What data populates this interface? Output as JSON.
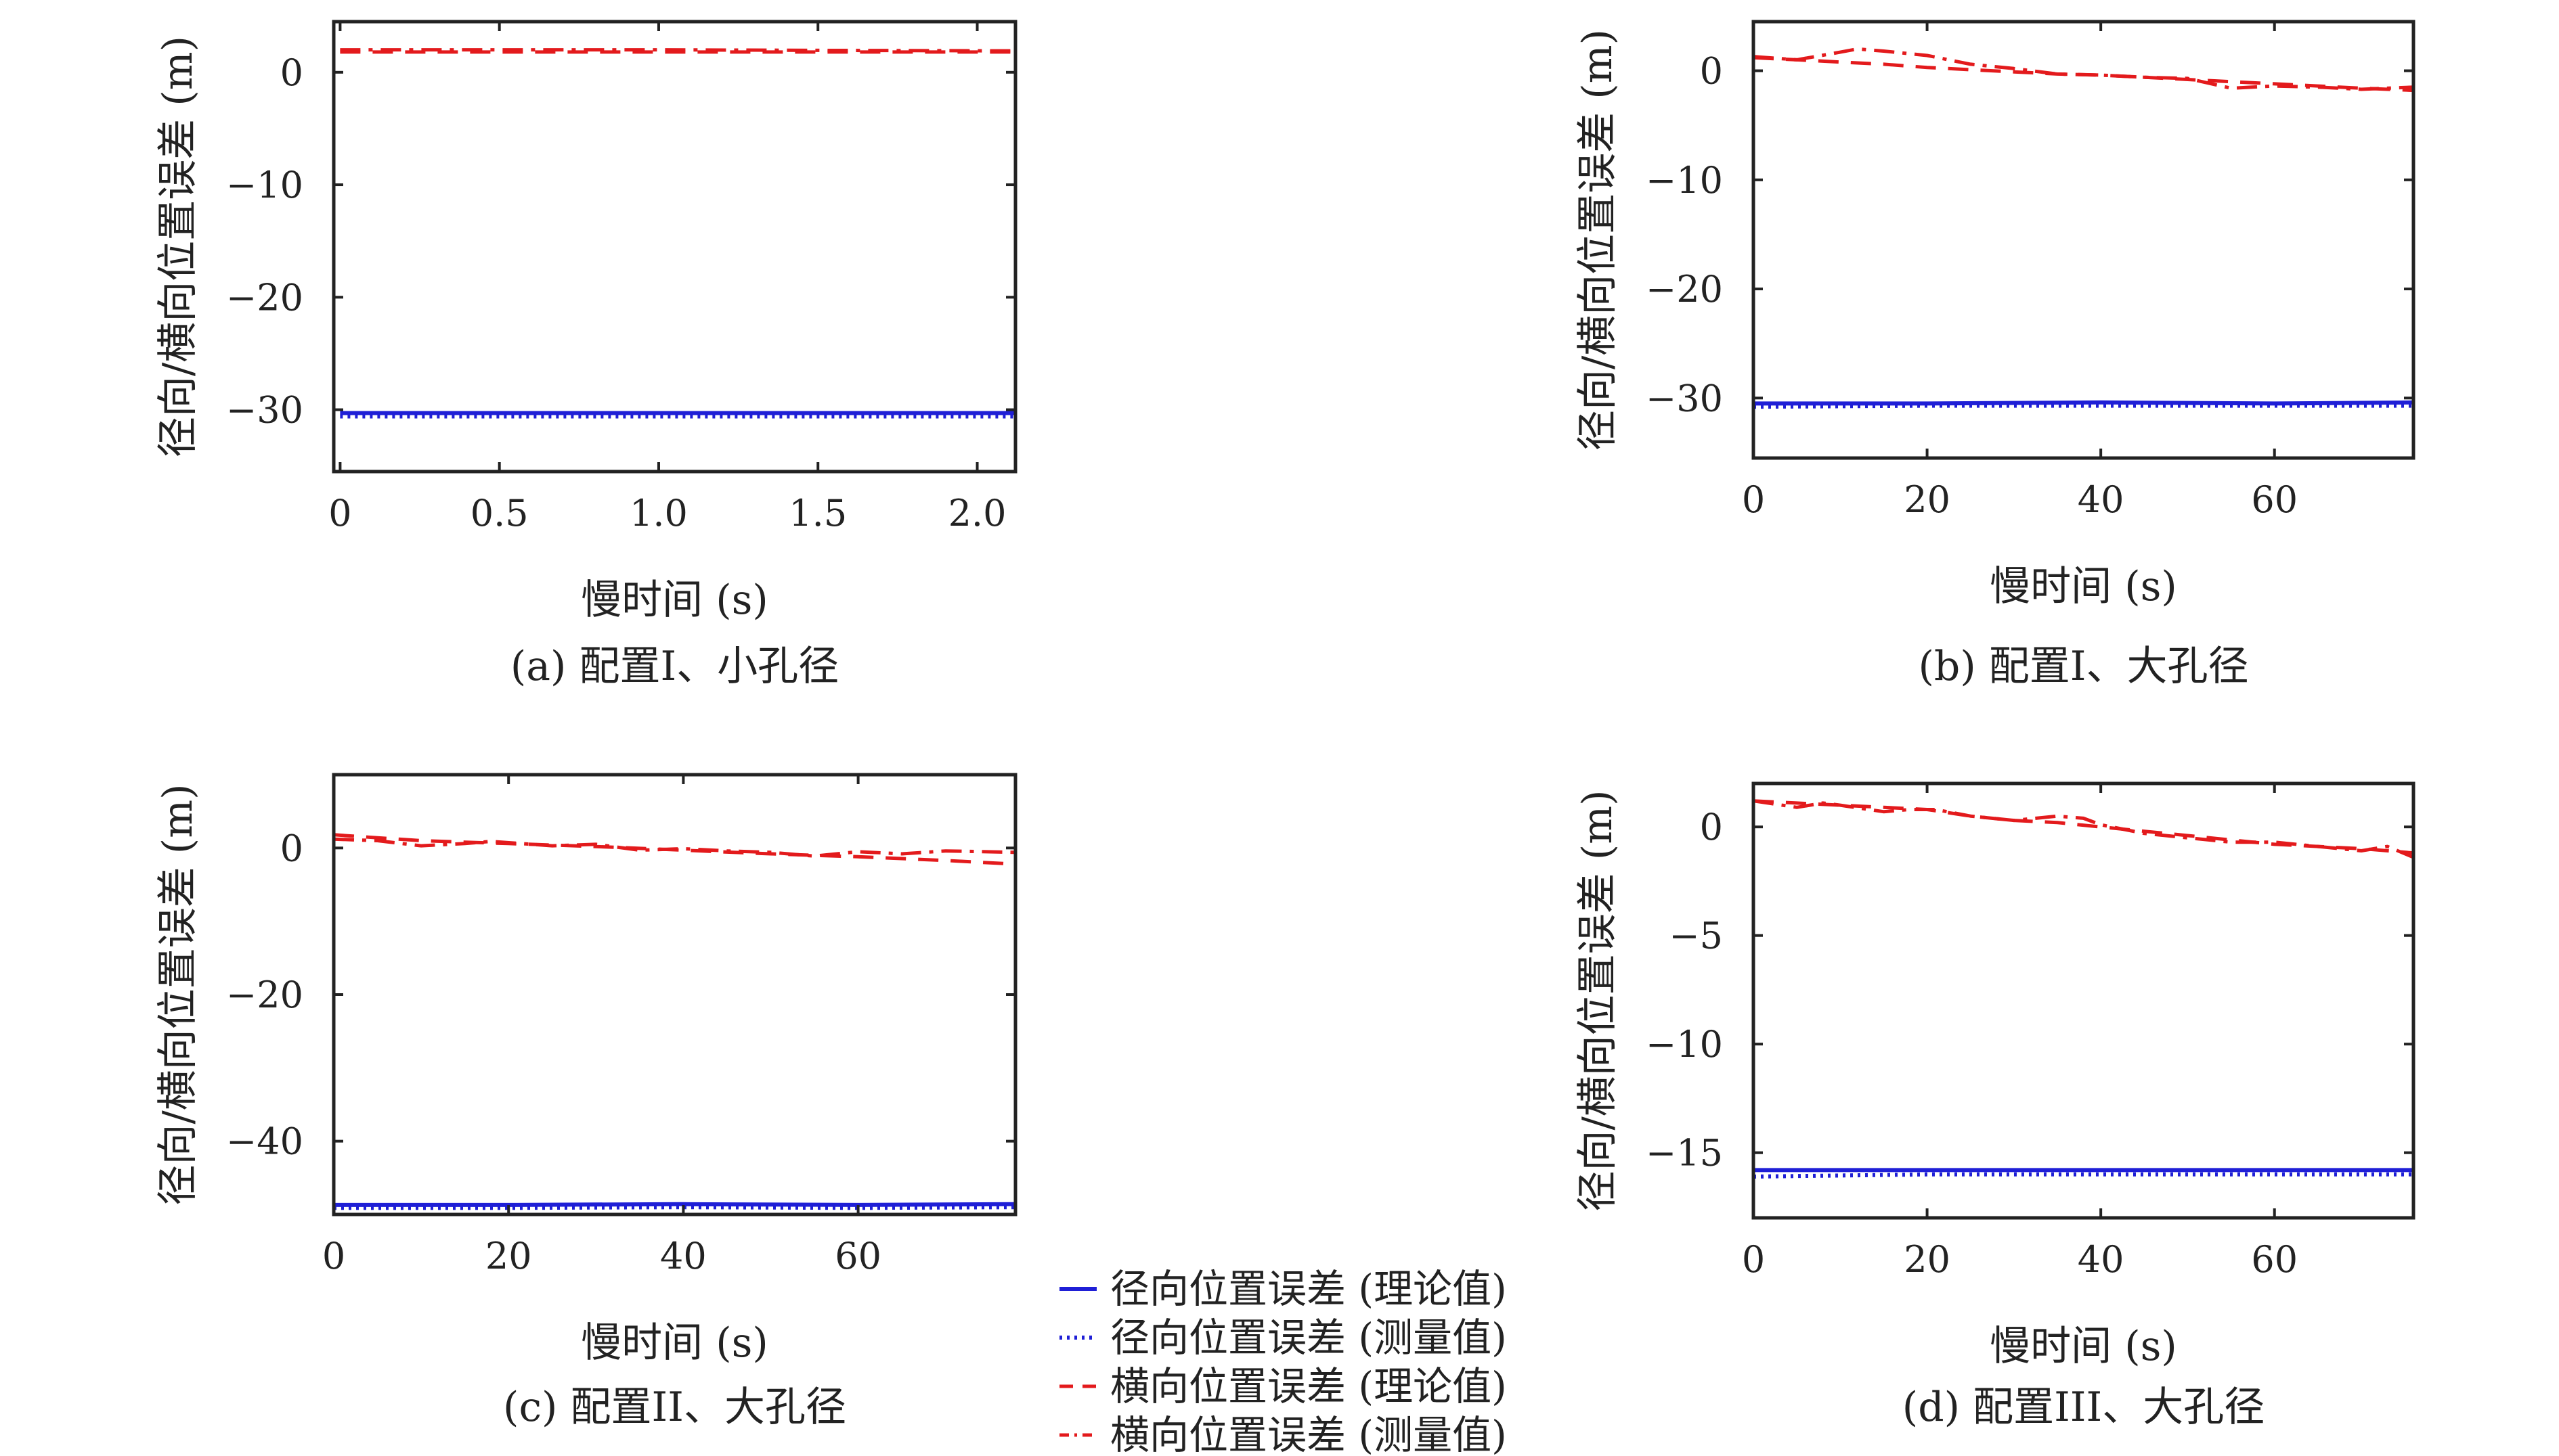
{
  "colors": {
    "radial": "#1f1fd6",
    "cross": "#e31a1c",
    "axis": "#222222"
  },
  "chart_data": [
    {
      "id": "a",
      "type": "line",
      "caption": "(a) 配置I、小孔径",
      "xlabel": "慢时间 (s)",
      "ylabel": "径向/横向位置误差 (m)",
      "xlim": [
        -0.02,
        2.12
      ],
      "ylim": [
        -35.5,
        4.5
      ],
      "xticks": [
        0,
        0.5,
        1.0,
        1.5,
        2.0
      ],
      "xtick_labels": [
        "0",
        "0.5",
        "1.0",
        "1.5",
        "2.0"
      ],
      "yticks": [
        -30,
        -20,
        -10,
        0
      ],
      "ytick_labels": [
        "−30",
        "−20",
        "−10",
        "0"
      ],
      "series": [
        {
          "name": "径向位置误差 (理论值)",
          "x": [
            0,
            0.5,
            1.0,
            1.5,
            2.12
          ],
          "y": [
            -30.3,
            -30.3,
            -30.3,
            -30.3,
            -30.3
          ]
        },
        {
          "name": "径向位置误差 (测量值)",
          "x": [
            0,
            0.5,
            1.0,
            1.5,
            2.12
          ],
          "y": [
            -30.6,
            -30.6,
            -30.6,
            -30.6,
            -30.6
          ]
        },
        {
          "name": "横向位置误差 (理论值)",
          "x": [
            0,
            0.5,
            1.0,
            1.5,
            2.12
          ],
          "y": [
            1.8,
            1.8,
            1.8,
            1.8,
            1.8
          ]
        },
        {
          "name": "横向位置误差 (测量值)",
          "x": [
            0,
            0.5,
            1.0,
            1.5,
            2.12
          ],
          "y": [
            2.0,
            2.0,
            2.0,
            1.95,
            1.9
          ]
        }
      ]
    },
    {
      "id": "b",
      "type": "line",
      "caption": "(b) 配置I、大孔径",
      "xlabel": "慢时间 (s)",
      "ylabel": "径向/横向位置误差 (m)",
      "xlim": [
        0,
        76
      ],
      "ylim": [
        -35.5,
        4.5
      ],
      "xticks": [
        0,
        20,
        40,
        60
      ],
      "xtick_labels": [
        "0",
        "20",
        "40",
        "60"
      ],
      "yticks": [
        -30,
        -20,
        -10,
        0
      ],
      "ytick_labels": [
        "−30",
        "−20",
        "−10",
        "0"
      ],
      "series": [
        {
          "name": "径向位置误差 (理论值)",
          "x": [
            0,
            20,
            40,
            60,
            76
          ],
          "y": [
            -30.5,
            -30.5,
            -30.4,
            -30.5,
            -30.4
          ]
        },
        {
          "name": "径向位置误差 (测量值)",
          "x": [
            0,
            20,
            40,
            60,
            76
          ],
          "y": [
            -30.8,
            -30.7,
            -30.7,
            -30.7,
            -30.7
          ]
        },
        {
          "name": "横向位置误差 (理论值)",
          "x": [
            0,
            5,
            10,
            15,
            20,
            25,
            30,
            35,
            40,
            45,
            50,
            55,
            60,
            65,
            70,
            76
          ],
          "y": [
            1.2,
            1.0,
            0.8,
            0.6,
            0.3,
            0.1,
            -0.1,
            -0.3,
            -0.4,
            -0.6,
            -0.8,
            -1.0,
            -1.2,
            -1.4,
            -1.6,
            -1.8
          ]
        },
        {
          "name": "横向位置误差 (测量值)",
          "x": [
            0,
            5,
            10,
            12,
            15,
            20,
            25,
            30,
            35,
            40,
            45,
            50,
            55,
            60,
            65,
            70,
            76
          ],
          "y": [
            1.3,
            1.0,
            1.7,
            2.0,
            1.8,
            1.4,
            0.6,
            0.2,
            -0.3,
            -0.4,
            -0.6,
            -0.7,
            -1.6,
            -1.4,
            -1.5,
            -1.7,
            -1.5
          ]
        }
      ]
    },
    {
      "id": "c",
      "type": "line",
      "caption": "(c) 配置II、大孔径",
      "xlabel": "慢时间 (s)",
      "ylabel": "径向/横向位置误差 (m)",
      "xlim": [
        0,
        78
      ],
      "ylim": [
        -50,
        10
      ],
      "xticks": [
        0,
        20,
        40,
        60
      ],
      "xtick_labels": [
        "0",
        "20",
        "40",
        "60"
      ],
      "yticks": [
        -40,
        -20,
        0
      ],
      "ytick_labels": [
        "−40",
        "−20",
        "0"
      ],
      "series": [
        {
          "name": "径向位置误差 (理论值)",
          "x": [
            0,
            20,
            40,
            60,
            78
          ],
          "y": [
            -48.7,
            -48.7,
            -48.6,
            -48.7,
            -48.6
          ]
        },
        {
          "name": "径向位置误差 (测量值)",
          "x": [
            0,
            20,
            40,
            60,
            78
          ],
          "y": [
            -49.1,
            -49.1,
            -49.0,
            -49.1,
            -49.0
          ]
        },
        {
          "name": "横向位置误差 (理论值)",
          "x": [
            0,
            5,
            10,
            15,
            20,
            30,
            40,
            50,
            60,
            70,
            78
          ],
          "y": [
            1.8,
            1.4,
            1.0,
            0.8,
            0.6,
            0.2,
            -0.3,
            -0.8,
            -1.2,
            -1.7,
            -2.2
          ]
        },
        {
          "name": "横向位置误差 (测量值)",
          "x": [
            0,
            5,
            10,
            15,
            18,
            25,
            30,
            35,
            40,
            45,
            50,
            55,
            60,
            65,
            70,
            78
          ],
          "y": [
            1.2,
            1.0,
            0.3,
            0.6,
            0.9,
            0.3,
            0.5,
            -0.3,
            -0.1,
            -0.4,
            -0.6,
            -1.1,
            -0.5,
            -0.8,
            -0.4,
            -0.6
          ]
        }
      ]
    },
    {
      "id": "d",
      "type": "line",
      "caption": "(d) 配置III、大孔径",
      "xlabel": "慢时间 (s)",
      "ylabel": "径向/横向位置误差 (m)",
      "xlim": [
        0,
        76
      ],
      "ylim": [
        -18,
        2
      ],
      "xticks": [
        0,
        20,
        40,
        60
      ],
      "xtick_labels": [
        "0",
        "20",
        "40",
        "60"
      ],
      "yticks": [
        -15,
        -10,
        -5,
        0
      ],
      "ytick_labels": [
        "−15",
        "−10",
        "−5",
        "0"
      ],
      "series": [
        {
          "name": "径向位置误差 (理论值)",
          "x": [
            0,
            20,
            40,
            60,
            76
          ],
          "y": [
            -15.8,
            -15.8,
            -15.8,
            -15.8,
            -15.8
          ]
        },
        {
          "name": "径向位置误差 (测量值)",
          "x": [
            0,
            20,
            40,
            60,
            76
          ],
          "y": [
            -16.1,
            -16.0,
            -16.0,
            -16.0,
            -16.0
          ]
        },
        {
          "name": "横向位置误差 (理论值)",
          "x": [
            0,
            5,
            10,
            15,
            20,
            25,
            30,
            35,
            40,
            45,
            50,
            55,
            60,
            65,
            70,
            76
          ],
          "y": [
            1.2,
            1.1,
            1.0,
            0.9,
            0.8,
            0.5,
            0.3,
            0.2,
            0.0,
            -0.2,
            -0.4,
            -0.6,
            -0.8,
            -0.9,
            -1.0,
            -1.2
          ]
        },
        {
          "name": "横向位置误差 (测量值)",
          "x": [
            0,
            5,
            8,
            10,
            15,
            18,
            21,
            25,
            30,
            35,
            38,
            40,
            45,
            50,
            55,
            60,
            65,
            70,
            73,
            76
          ],
          "y": [
            1.2,
            0.9,
            1.1,
            1.0,
            0.7,
            0.8,
            0.8,
            0.5,
            0.3,
            0.5,
            0.4,
            0.1,
            -0.3,
            -0.5,
            -0.7,
            -0.7,
            -0.9,
            -1.1,
            -0.9,
            -1.4
          ]
        }
      ]
    }
  ],
  "legend": {
    "items": [
      {
        "label": "径向位置误差 (理论值)",
        "series_index": 0
      },
      {
        "label": "径向位置误差 (测量值)",
        "series_index": 1
      },
      {
        "label": "横向位置误差 (理论值)",
        "series_index": 2
      },
      {
        "label": "横向位置误差 (测量值)",
        "series_index": 3
      }
    ]
  }
}
